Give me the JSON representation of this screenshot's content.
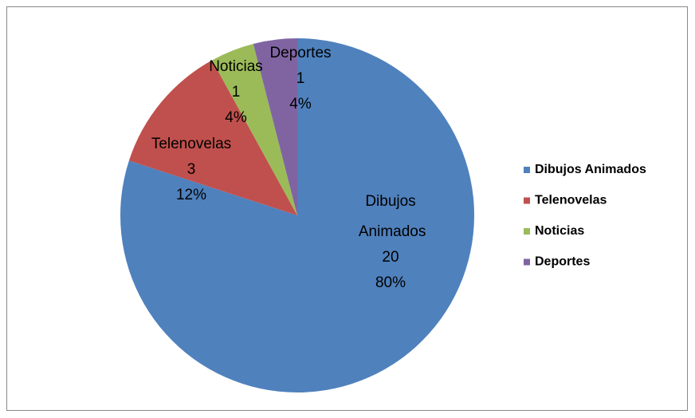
{
  "chart_data": {
    "type": "pie",
    "categories": [
      "Dibujos Animados",
      "Telenovelas",
      "Noticias",
      "Deportes"
    ],
    "values": [
      20,
      3,
      1,
      1
    ],
    "percent_labels": [
      "80%",
      "12%",
      "4%",
      "4%"
    ],
    "colors": [
      "#4f81bd",
      "#c0504d",
      "#9bbb59",
      "#8064a2"
    ],
    "legend": "right"
  }
}
